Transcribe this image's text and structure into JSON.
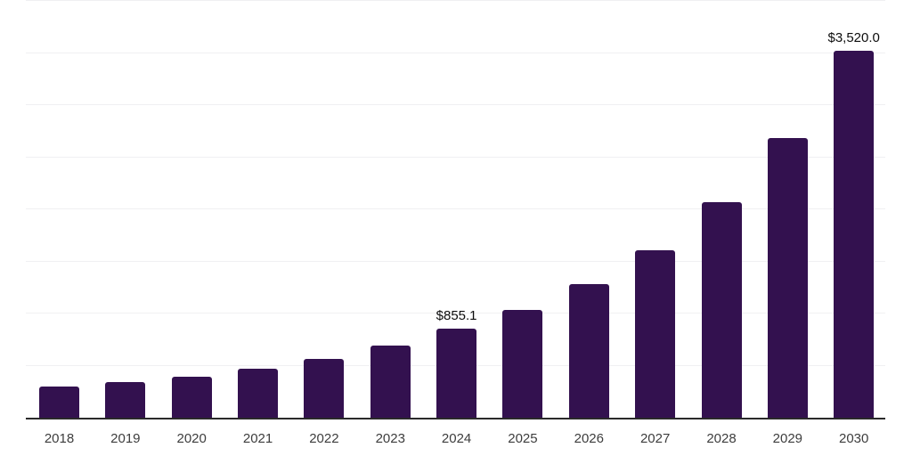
{
  "chart_data": {
    "type": "bar",
    "title": "",
    "xlabel": "",
    "ylabel": "",
    "categories": [
      "2018",
      "2019",
      "2020",
      "2021",
      "2022",
      "2023",
      "2024",
      "2025",
      "2026",
      "2027",
      "2028",
      "2029",
      "2030"
    ],
    "values": [
      299,
      342,
      393,
      470,
      564,
      692,
      855.1,
      1034,
      1282,
      1607,
      2068,
      2684,
      3520
    ],
    "point_labels": {
      "2024": "$855.1",
      "2030": "$3,520.0"
    },
    "ylim": [
      0,
      4000
    ],
    "gridline_step": 500,
    "grid": true,
    "legend": false,
    "colors": {
      "bar": "#33114f",
      "axis_line": "#2a2a2a",
      "gridline": "#f0f0f2",
      "x_tick_label": "#3d3d3d",
      "value_label": "#0d0d0d",
      "background": "#ffffff"
    }
  }
}
